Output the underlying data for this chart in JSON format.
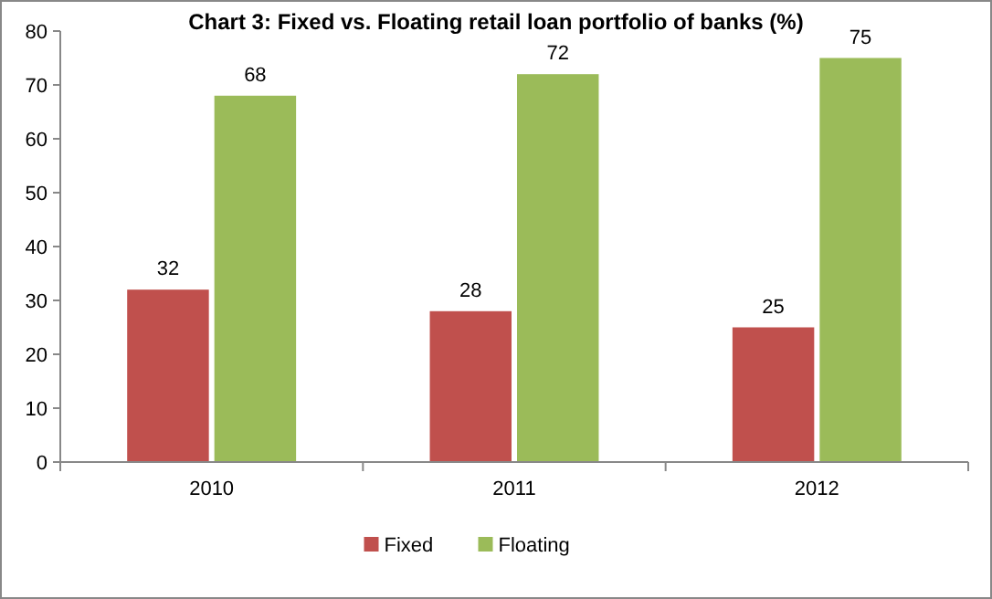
{
  "chart_data": {
    "type": "bar",
    "title": "Chart 3: Fixed vs. Floating retail loan portfolio of banks (%)",
    "categories": [
      "2010",
      "2011",
      "2012"
    ],
    "series": [
      {
        "name": "Fixed",
        "color": "#c0504d",
        "values": [
          32,
          28,
          25
        ]
      },
      {
        "name": "Floating",
        "color": "#9bbb59",
        "values": [
          68,
          72,
          75
        ]
      }
    ],
    "ylim": [
      0,
      80
    ],
    "yticks": [
      0,
      10,
      20,
      30,
      40,
      50,
      60,
      70,
      80
    ],
    "grid": false,
    "legend": "bottom",
    "data_labels": true
  }
}
